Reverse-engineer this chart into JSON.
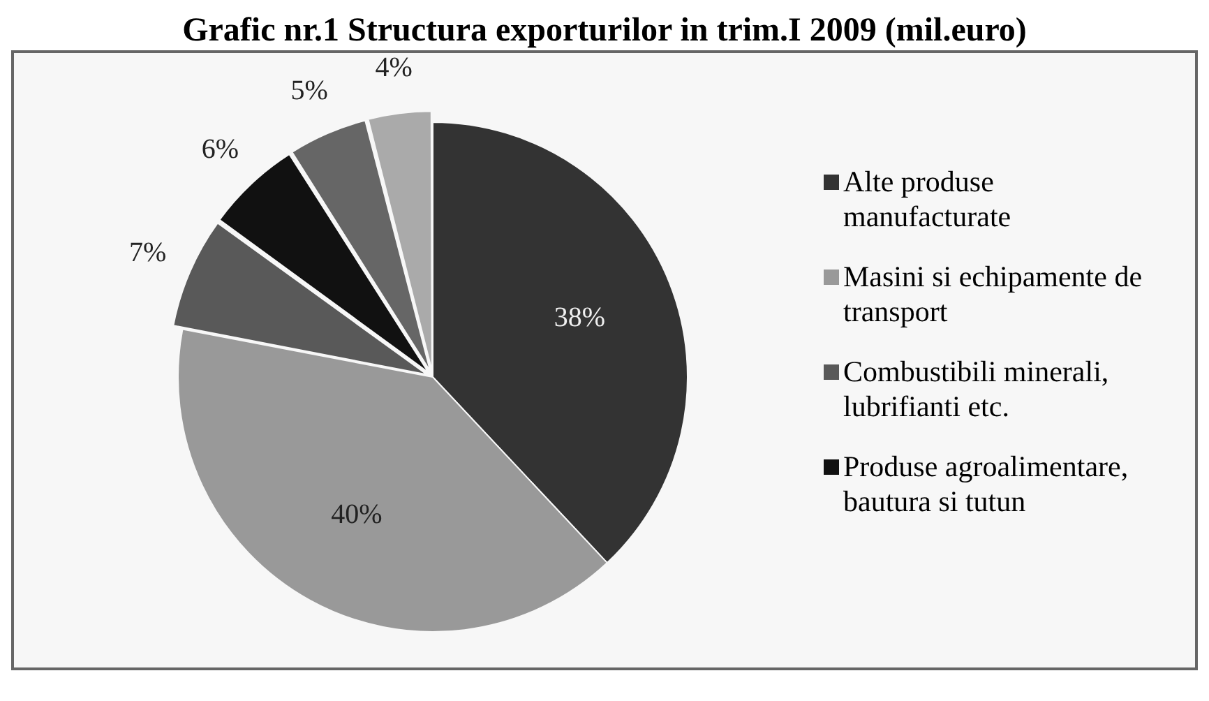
{
  "chart_data": {
    "type": "pie",
    "title": "Grafic nr.1 Structura exporturilor in trim.I 2009 (mil.euro)",
    "categories": [
      "Alte produse manufacturate",
      "Masini si echipamente de transport",
      "Combustibili minerali, lubrifianti etc.",
      "Produse agroalimentare, bautura si tutun",
      null,
      null
    ],
    "values": [
      38,
      40,
      7,
      6,
      5,
      4
    ],
    "colors": [
      "#333333",
      "#999999",
      "#595959",
      "#111111",
      "#666666",
      "#aaaaaa"
    ],
    "value_labels": [
      "38%",
      "40%",
      "7%",
      "6%",
      "5%",
      "4%"
    ],
    "legend": "right"
  }
}
